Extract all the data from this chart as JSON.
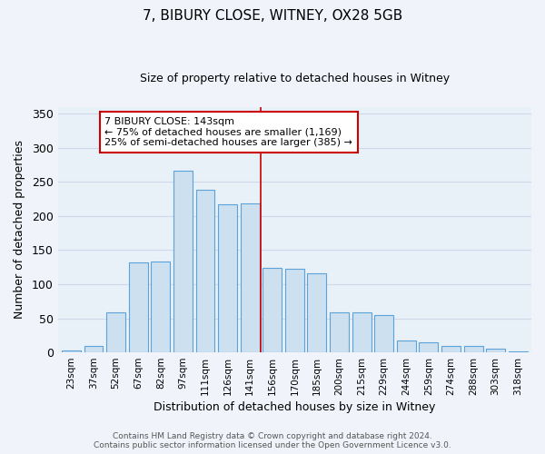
{
  "title": "7, BIBURY CLOSE, WITNEY, OX28 5GB",
  "subtitle": "Size of property relative to detached houses in Witney",
  "xlabel": "Distribution of detached houses by size in Witney",
  "ylabel": "Number of detached properties",
  "categories": [
    "23sqm",
    "37sqm",
    "52sqm",
    "67sqm",
    "82sqm",
    "97sqm",
    "111sqm",
    "126sqm",
    "141sqm",
    "156sqm",
    "170sqm",
    "185sqm",
    "200sqm",
    "215sqm",
    "229sqm",
    "244sqm",
    "259sqm",
    "274sqm",
    "288sqm",
    "303sqm",
    "318sqm"
  ],
  "values": [
    3,
    10,
    59,
    132,
    133,
    267,
    239,
    217,
    218,
    124,
    123,
    116,
    59,
    59,
    55,
    18,
    15,
    9,
    9,
    5,
    2
  ],
  "bar_color": "#cce0f0",
  "bar_edge_color": "#5ba3d9",
  "vline_color": "#cc0000",
  "annotation_text": "7 BIBURY CLOSE: 143sqm\n← 75% of detached houses are smaller (1,169)\n25% of semi-detached houses are larger (385) →",
  "annotation_box_color": "#ffffff",
  "annotation_box_edge_color": "#cc0000",
  "ylim": [
    0,
    360
  ],
  "yticks": [
    0,
    50,
    100,
    150,
    200,
    250,
    300,
    350
  ],
  "bg_color": "#e8f0f8",
  "grid_color": "#d0d8e8",
  "footer": "Contains HM Land Registry data © Crown copyright and database right 2024.\nContains public sector information licensed under the Open Government Licence v3.0.",
  "fig_bg_color": "#f0f4fa"
}
